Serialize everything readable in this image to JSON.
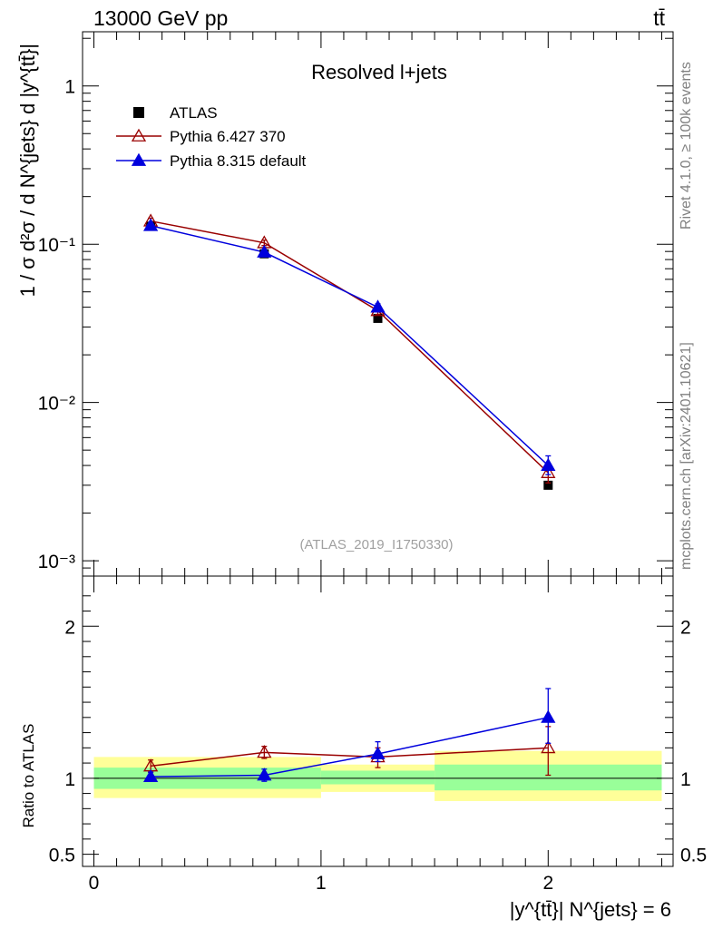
{
  "header": {
    "left": "13000 GeV pp",
    "right": "tt̄"
  },
  "side_labels": {
    "rivet": "Rivet 4.1.0, ≥ 100k events",
    "site": "mcplots.cern.ch [arXiv:2401.10621]"
  },
  "colors": {
    "atlas": "#000000",
    "pythia6": "#990000",
    "pythia8": "#0000dd",
    "band_inner": "#99ff99",
    "band_outer": "#ffff99"
  },
  "chart_data": [
    {
      "type": "line",
      "panel": "main",
      "title": "Resolved l+jets",
      "watermark": "(ATLAS_2019_I1750330)",
      "ylabel": "1 / σ d²σ / d N^{jets} d |y^{tt̄}|",
      "yscale": "log",
      "ylim": [
        0.0008,
        2.2
      ],
      "xlim": [
        -0.05,
        2.55
      ],
      "y_ticks": [
        {
          "value": 1,
          "label": "1"
        },
        {
          "value": 0.1,
          "label": "10⁻¹"
        },
        {
          "value": 0.01,
          "label": "10⁻²"
        },
        {
          "value": 0.001,
          "label": "10⁻³"
        }
      ],
      "legend_position": "top-left",
      "series": [
        {
          "name": "ATLAS",
          "marker": "square",
          "x": [
            0.25,
            0.75,
            1.25,
            2.0
          ],
          "values": [
            0.13,
            0.087,
            0.034,
            0.003
          ],
          "xerr": [
            0.25,
            0.25,
            0.25,
            0.5
          ]
        },
        {
          "name": "Pythia 6.427 370",
          "marker": "triangle-open",
          "x": [
            0.25,
            0.75,
            1.25,
            2.0
          ],
          "values": [
            0.14,
            0.102,
            0.038,
            0.0036
          ],
          "err_low": [
            0.134,
            0.098,
            0.036,
            0.0031
          ],
          "err_high": [
            0.146,
            0.106,
            0.04,
            0.0041
          ]
        },
        {
          "name": "Pythia 8.315 default",
          "marker": "triangle-filled",
          "x": [
            0.25,
            0.75,
            1.25,
            2.0
          ],
          "values": [
            0.131,
            0.089,
            0.04,
            0.004
          ],
          "err_low": [
            0.126,
            0.086,
            0.038,
            0.0035
          ],
          "err_high": [
            0.136,
            0.092,
            0.042,
            0.0046
          ]
        }
      ]
    },
    {
      "type": "line",
      "panel": "ratio",
      "ylabel": "Ratio to ATLAS",
      "xlabel": "|y^{tt̄}| N^{jets} = 6",
      "ylim": [
        0.42,
        2.33
      ],
      "xlim": [
        -0.05,
        2.55
      ],
      "x_ticks": [
        {
          "value": 0,
          "label": "0"
        },
        {
          "value": 1,
          "label": "1"
        },
        {
          "value": 2,
          "label": "2"
        }
      ],
      "y_ticks": [
        {
          "value": 2,
          "label": "2"
        },
        {
          "value": 1,
          "label": "1"
        },
        {
          "value": 0.5,
          "label": "0.5"
        }
      ],
      "reference": 1,
      "uncertainty_bands": [
        {
          "x_low": 0.0,
          "x_high": 1.0,
          "inner": [
            0.93,
            1.07
          ],
          "outer": [
            0.87,
            1.14
          ]
        },
        {
          "x_low": 1.0,
          "x_high": 1.5,
          "inner": [
            0.96,
            1.05
          ],
          "outer": [
            0.91,
            1.09
          ]
        },
        {
          "x_low": 1.5,
          "x_high": 2.5,
          "inner": [
            0.92,
            1.09
          ],
          "outer": [
            0.85,
            1.18
          ]
        }
      ],
      "series": [
        {
          "name": "Pythia 6.427 370",
          "x": [
            0.25,
            0.75,
            1.25,
            2.0
          ],
          "values": [
            1.08,
            1.17,
            1.14,
            1.2
          ],
          "err_low": [
            1.04,
            1.13,
            1.07,
            1.02
          ],
          "err_high": [
            1.12,
            1.21,
            1.2,
            1.34
          ]
        },
        {
          "name": "Pythia 8.315 default",
          "x": [
            0.25,
            0.75,
            1.25,
            2.0
          ],
          "values": [
            1.01,
            1.02,
            1.16,
            1.4
          ],
          "err_low": [
            0.98,
            0.98,
            1.11,
            1.23
          ],
          "err_high": [
            1.04,
            1.06,
            1.24,
            1.59
          ]
        }
      ]
    }
  ]
}
